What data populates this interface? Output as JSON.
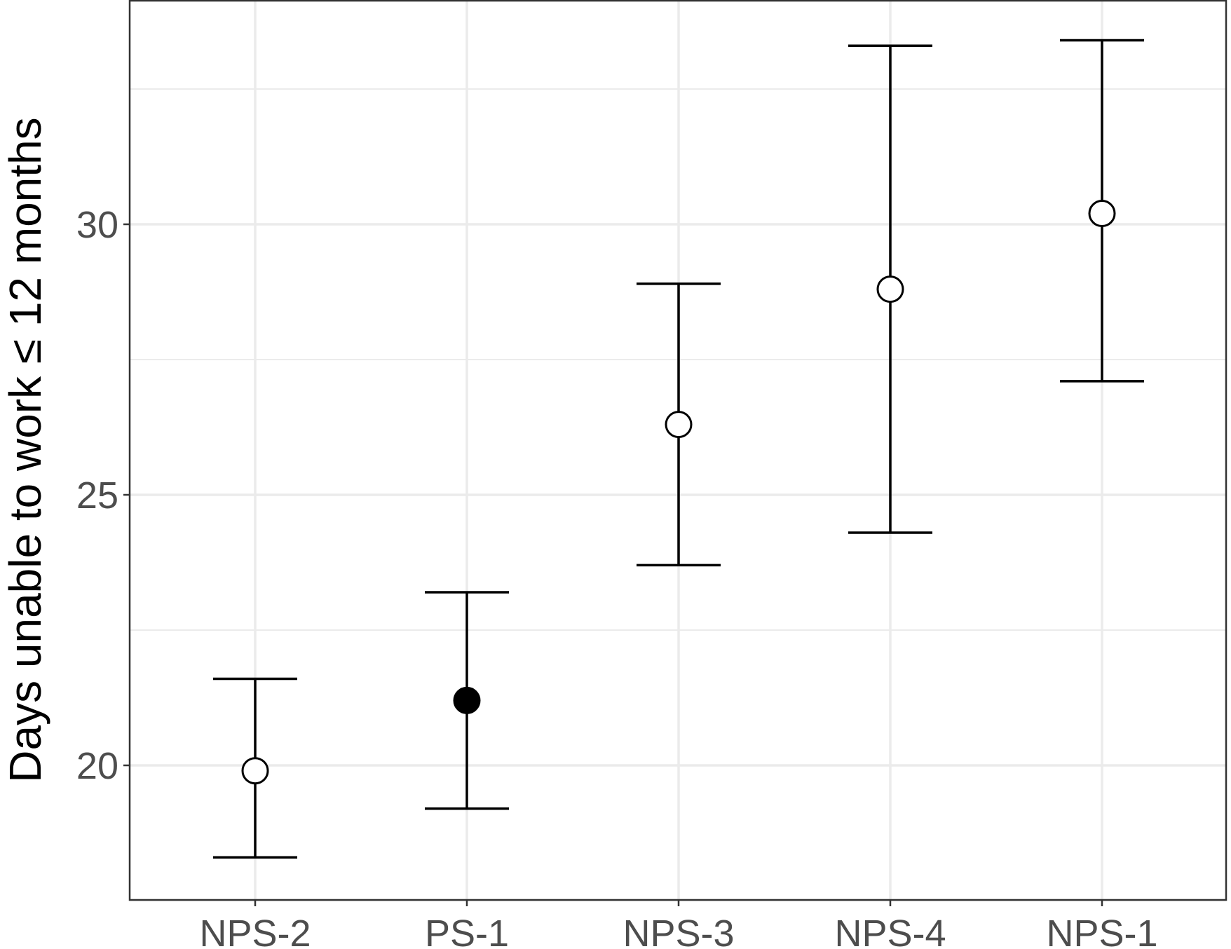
{
  "chart_data": {
    "type": "scatter",
    "title": "",
    "xlabel": "",
    "ylabel": "Days unable to work ≤ 12 months",
    "categories": [
      "NPS-2",
      "PS-1",
      "NPS-3",
      "NPS-4",
      "NPS-1"
    ],
    "points": [
      {
        "category": "NPS-2",
        "value": 19.9,
        "lower": 18.3,
        "upper": 21.6,
        "filled": false
      },
      {
        "category": "PS-1",
        "value": 21.2,
        "lower": 19.2,
        "upper": 23.2,
        "filled": true
      },
      {
        "category": "NPS-3",
        "value": 26.3,
        "lower": 23.7,
        "upper": 28.9,
        "filled": false
      },
      {
        "category": "NPS-4",
        "value": 28.8,
        "lower": 24.3,
        "upper": 33.3,
        "filled": false
      },
      {
        "category": "NPS-1",
        "value": 30.2,
        "lower": 27.1,
        "upper": 33.4,
        "filled": false
      }
    ],
    "y_ticks": [
      20,
      25,
      30
    ],
    "ylim": [
      17.5,
      34.3
    ],
    "grid": true,
    "legend": "none",
    "colors": {
      "points": "#000000",
      "grid": "#ebebeb",
      "panel_border": "#333333",
      "tick_text": "#4d4d4d"
    }
  }
}
